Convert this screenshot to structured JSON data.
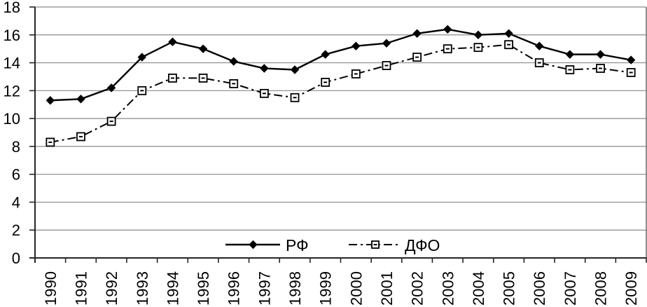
{
  "chart_data": {
    "type": "line",
    "title": "",
    "xlabel": "",
    "ylabel": "",
    "categories": [
      "1990",
      "1991",
      "1992",
      "1993",
      "1994",
      "1995",
      "1996",
      "1997",
      "1998",
      "1999",
      "2000",
      "2001",
      "2002",
      "2003",
      "2004",
      "2005",
      "2006",
      "2007",
      "2008",
      "2009"
    ],
    "series": [
      {
        "name": "РФ",
        "line_style": "solid",
        "marker": "filled-diamond",
        "color": "#000000",
        "values": [
          11.3,
          11.4,
          12.2,
          14.4,
          15.5,
          15.0,
          14.1,
          13.6,
          13.5,
          14.6,
          15.2,
          15.4,
          16.1,
          16.4,
          16.0,
          16.1,
          15.2,
          14.6,
          14.6,
          14.2
        ]
      },
      {
        "name": "ДФО",
        "line_style": "dash-dot",
        "marker": "open-square",
        "color": "#000000",
        "values": [
          8.3,
          8.7,
          9.8,
          12.0,
          12.9,
          12.9,
          12.5,
          11.8,
          11.5,
          12.6,
          13.2,
          13.8,
          14.4,
          15.0,
          15.1,
          15.3,
          14.0,
          13.5,
          13.6,
          13.3
        ]
      }
    ],
    "ylim": [
      0,
      18
    ],
    "ytick_step": 2,
    "y_tick_labels": [
      "0",
      "2",
      "4",
      "6",
      "8",
      "10",
      "12",
      "14",
      "16",
      "18"
    ],
    "grid": "horizontal",
    "legend_position": "bottom-center",
    "colors": {
      "background": "#ffffff",
      "grid": "#8a8a8a",
      "axis": "#262626",
      "plot_right_border": "#6b6b6b",
      "series": "#000000"
    }
  }
}
